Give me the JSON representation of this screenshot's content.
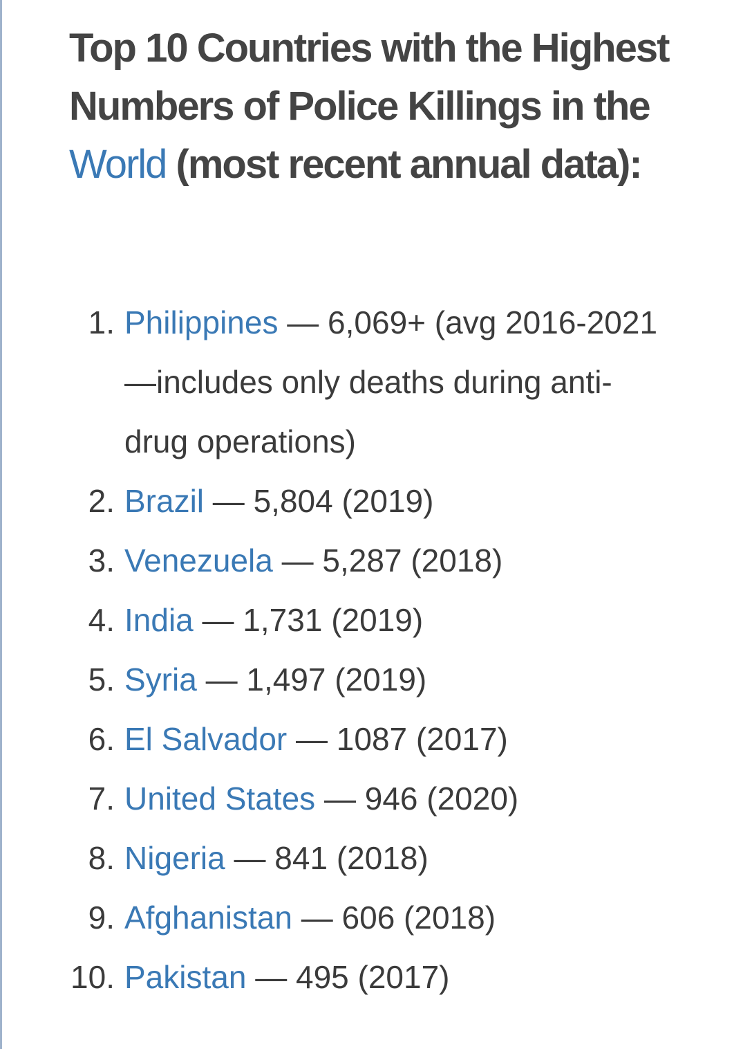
{
  "heading": {
    "text_before_link": "Top 10 Countries with the Highest Numbers of Police Killings in the ",
    "link_text": "World",
    "text_after_link": " (most recent annual data):"
  },
  "colors": {
    "link": "#3a79b5",
    "text": "#3b3b3b",
    "heading": "#444444",
    "left_rule": "#9fb3cc"
  },
  "items": [
    {
      "number": "1.",
      "country": "Philippines",
      "detail": " — 6,069+ (avg 2016-2021—includes only deaths during anti-drug operations)"
    },
    {
      "number": "2.",
      "country": "Brazil",
      "detail": " — 5,804 (2019)"
    },
    {
      "number": "3.",
      "country": "Venezuela",
      "detail": " — 5,287 (2018)"
    },
    {
      "number": "4.",
      "country": "India",
      "detail": " — 1,731 (2019)"
    },
    {
      "number": "5.",
      "country": "Syria",
      "detail": " — 1,497 (2019)"
    },
    {
      "number": "6.",
      "country": "El Salvador",
      "detail": " — 1087 (2017)"
    },
    {
      "number": "7.",
      "country": "United States",
      "detail": " — 946 (2020)"
    },
    {
      "number": "8.",
      "country": "Nigeria",
      "detail": " — 841 (2018)"
    },
    {
      "number": "9.",
      "country": "Afghanistan",
      "detail": " — 606 (2018)"
    },
    {
      "number": "10.",
      "country": "Pakistan",
      "detail": " — 495 (2017)"
    }
  ]
}
